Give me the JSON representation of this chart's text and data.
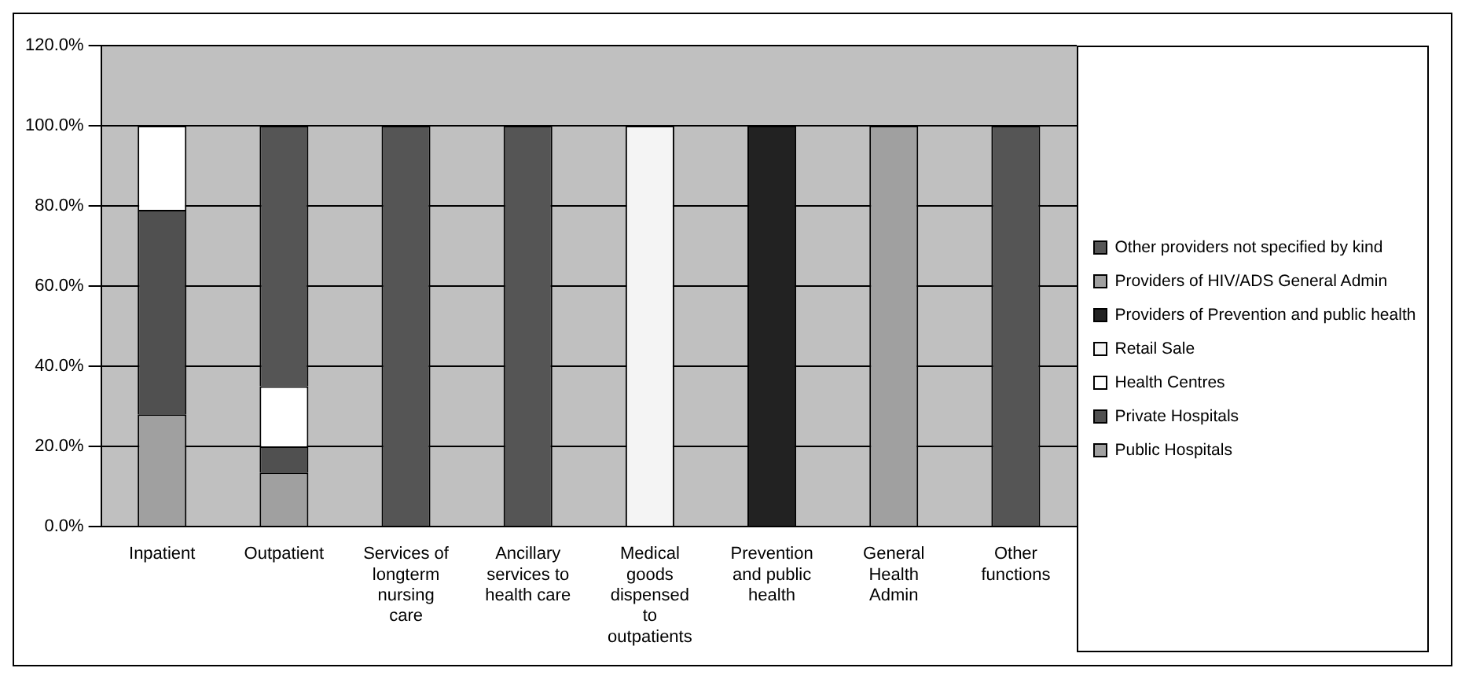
{
  "chart_data": {
    "type": "bar",
    "stacked": true,
    "grid": "y",
    "legend": "right",
    "categories": [
      "Inpatient",
      "Outpatient",
      "Services of longterm nursing care",
      "Ancillary services to health care",
      "Medical goods dispensed to outpatients",
      "Prevention and public health",
      "General Health Admin",
      "Other functions"
    ],
    "ylim": [
      0,
      120
    ],
    "yticks": [
      {
        "value": 0,
        "label": "0.0%"
      },
      {
        "value": 20,
        "label": "20.0%"
      },
      {
        "value": 40,
        "label": "40.0%"
      },
      {
        "value": 60,
        "label": "60.0%"
      },
      {
        "value": 80,
        "label": "80.0%"
      },
      {
        "value": 100,
        "label": "100.0%"
      },
      {
        "value": 120,
        "label": "120.0%"
      }
    ],
    "series": [
      {
        "name": "Public Hospitals",
        "color": "#a0a0a0",
        "values": [
          28,
          13.5,
          null,
          null,
          null,
          null,
          null,
          null
        ]
      },
      {
        "name": "Private Hospitals",
        "color": "#505050",
        "values": [
          51,
          6.5,
          null,
          null,
          null,
          null,
          null,
          null
        ]
      },
      {
        "name": "Health Centres",
        "color": "#ffffff",
        "values": [
          21,
          15,
          null,
          null,
          null,
          null,
          null,
          null
        ]
      },
      {
        "name": "Retail Sale",
        "color": "#f4f4f4",
        "values": [
          null,
          null,
          null,
          null,
          100,
          null,
          null,
          null
        ]
      },
      {
        "name": "Providers of Prevention and public health",
        "color": "#222222",
        "values": [
          null,
          null,
          null,
          null,
          null,
          100,
          null,
          null
        ]
      },
      {
        "name": "Providers of HIV/ADS General Admin",
        "color": "#a0a0a0",
        "values": [
          null,
          null,
          null,
          null,
          null,
          null,
          100,
          null
        ]
      },
      {
        "name": "Other providers not specified by kind",
        "color": "#555555",
        "values": [
          null,
          65,
          100,
          100,
          null,
          null,
          null,
          100
        ]
      }
    ]
  }
}
